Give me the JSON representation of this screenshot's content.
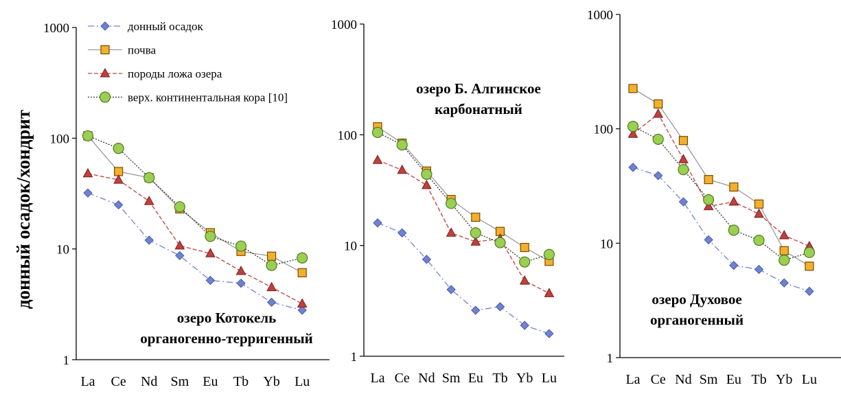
{
  "y_axis_label": "донный осадок/хондрит",
  "colors": {
    "sediment": "#6f82d2",
    "soil": "#f2b02e",
    "rock": "#c0403c",
    "crust": "#9bcf52",
    "soil_line": "#9a9a9a",
    "axis": "#000000"
  },
  "legend": [
    {
      "label": "донный осадок",
      "marker": "diamond-icon",
      "line": "dash-dot",
      "color": "#6f82d2"
    },
    {
      "label": "почва",
      "marker": "square-icon",
      "line": "solid",
      "color": "#f2b02e"
    },
    {
      "label": "породы ложа озера",
      "marker": "triangle-icon",
      "line": "dashed",
      "color": "#c0403c"
    },
    {
      "label": "верх. континентальная кора [10]",
      "marker": "circle-icon",
      "line": "dotted",
      "color": "#9bcf52"
    }
  ],
  "chart_data": [
    {
      "type": "line",
      "title": [
        "озеро Котокель",
        "органогенно-терригенный"
      ],
      "categories": [
        "La",
        "Ce",
        "Nd",
        "Sm",
        "Eu",
        "Tb",
        "Yb",
        "Lu"
      ],
      "yscale": "log",
      "ylim": [
        1,
        1000
      ],
      "yticks": [
        "1",
        "10",
        "100",
        "1000"
      ],
      "series": [
        {
          "name": "донный осадок",
          "values": [
            32,
            25,
            12,
            8.7,
            5.2,
            4.9,
            3.3,
            2.8
          ]
        },
        {
          "name": "почва",
          "values": [
            105,
            50,
            44,
            23,
            14,
            9.5,
            8.6,
            6.1
          ]
        },
        {
          "name": "породы ложа озера",
          "values": [
            48,
            42,
            27,
            10.7,
            9.1,
            6.3,
            4.5,
            3.2
          ]
        },
        {
          "name": "верх. континентальная кора [10]",
          "values": [
            105,
            81,
            44,
            24,
            13,
            10.6,
            7.1,
            8.3
          ]
        }
      ]
    },
    {
      "type": "line",
      "title": [
        "озеро Б. Алгинское",
        "карбонатный"
      ],
      "categories": [
        "La",
        "Ce",
        "Nd",
        "Sm",
        "Eu",
        "Tb",
        "Yb",
        "Lu"
      ],
      "yscale": "log",
      "ylim": [
        1,
        1000
      ],
      "yticks": [
        "1",
        "10",
        "100",
        "1000"
      ],
      "series": [
        {
          "name": "донный осадок",
          "values": [
            16,
            13,
            7.5,
            4,
            2.6,
            2.8,
            1.9,
            1.6
          ]
        },
        {
          "name": "почва",
          "values": [
            118,
            84,
            47,
            26,
            18,
            13.4,
            9.6,
            7.2
          ]
        },
        {
          "name": "породы ложа озера",
          "values": [
            59,
            48,
            35,
            13,
            10.8,
            11.5,
            4.8,
            3.7
          ]
        },
        {
          "name": "верх. континентальная кора [10]",
          "values": [
            105,
            81,
            44,
            24,
            13,
            10.6,
            7.1,
            8.3
          ]
        }
      ]
    },
    {
      "type": "line",
      "title": [
        "озеро Духовое",
        "органогенный"
      ],
      "categories": [
        "La",
        "Ce",
        "Nd",
        "Sm",
        "Eu",
        "Tb",
        "Yb",
        "Lu"
      ],
      "yscale": "log",
      "ylim": [
        1,
        1000
      ],
      "yticks": [
        "1",
        "10",
        "100",
        "1000"
      ],
      "series": [
        {
          "name": "донный осадок",
          "values": [
            46,
            39,
            23,
            10.7,
            6.4,
            5.9,
            4.5,
            3.8
          ]
        },
        {
          "name": "почва",
          "values": [
            225,
            165,
            79,
            36,
            31,
            22,
            8.6,
            6.3
          ]
        },
        {
          "name": "породы ложа озера",
          "values": [
            90,
            135,
            54,
            21,
            23,
            18,
            11.7,
            9.4
          ]
        },
        {
          "name": "верх. континентальная кора [10]",
          "values": [
            105,
            81,
            44,
            24,
            13,
            10.6,
            7.1,
            8.3
          ]
        }
      ]
    }
  ]
}
